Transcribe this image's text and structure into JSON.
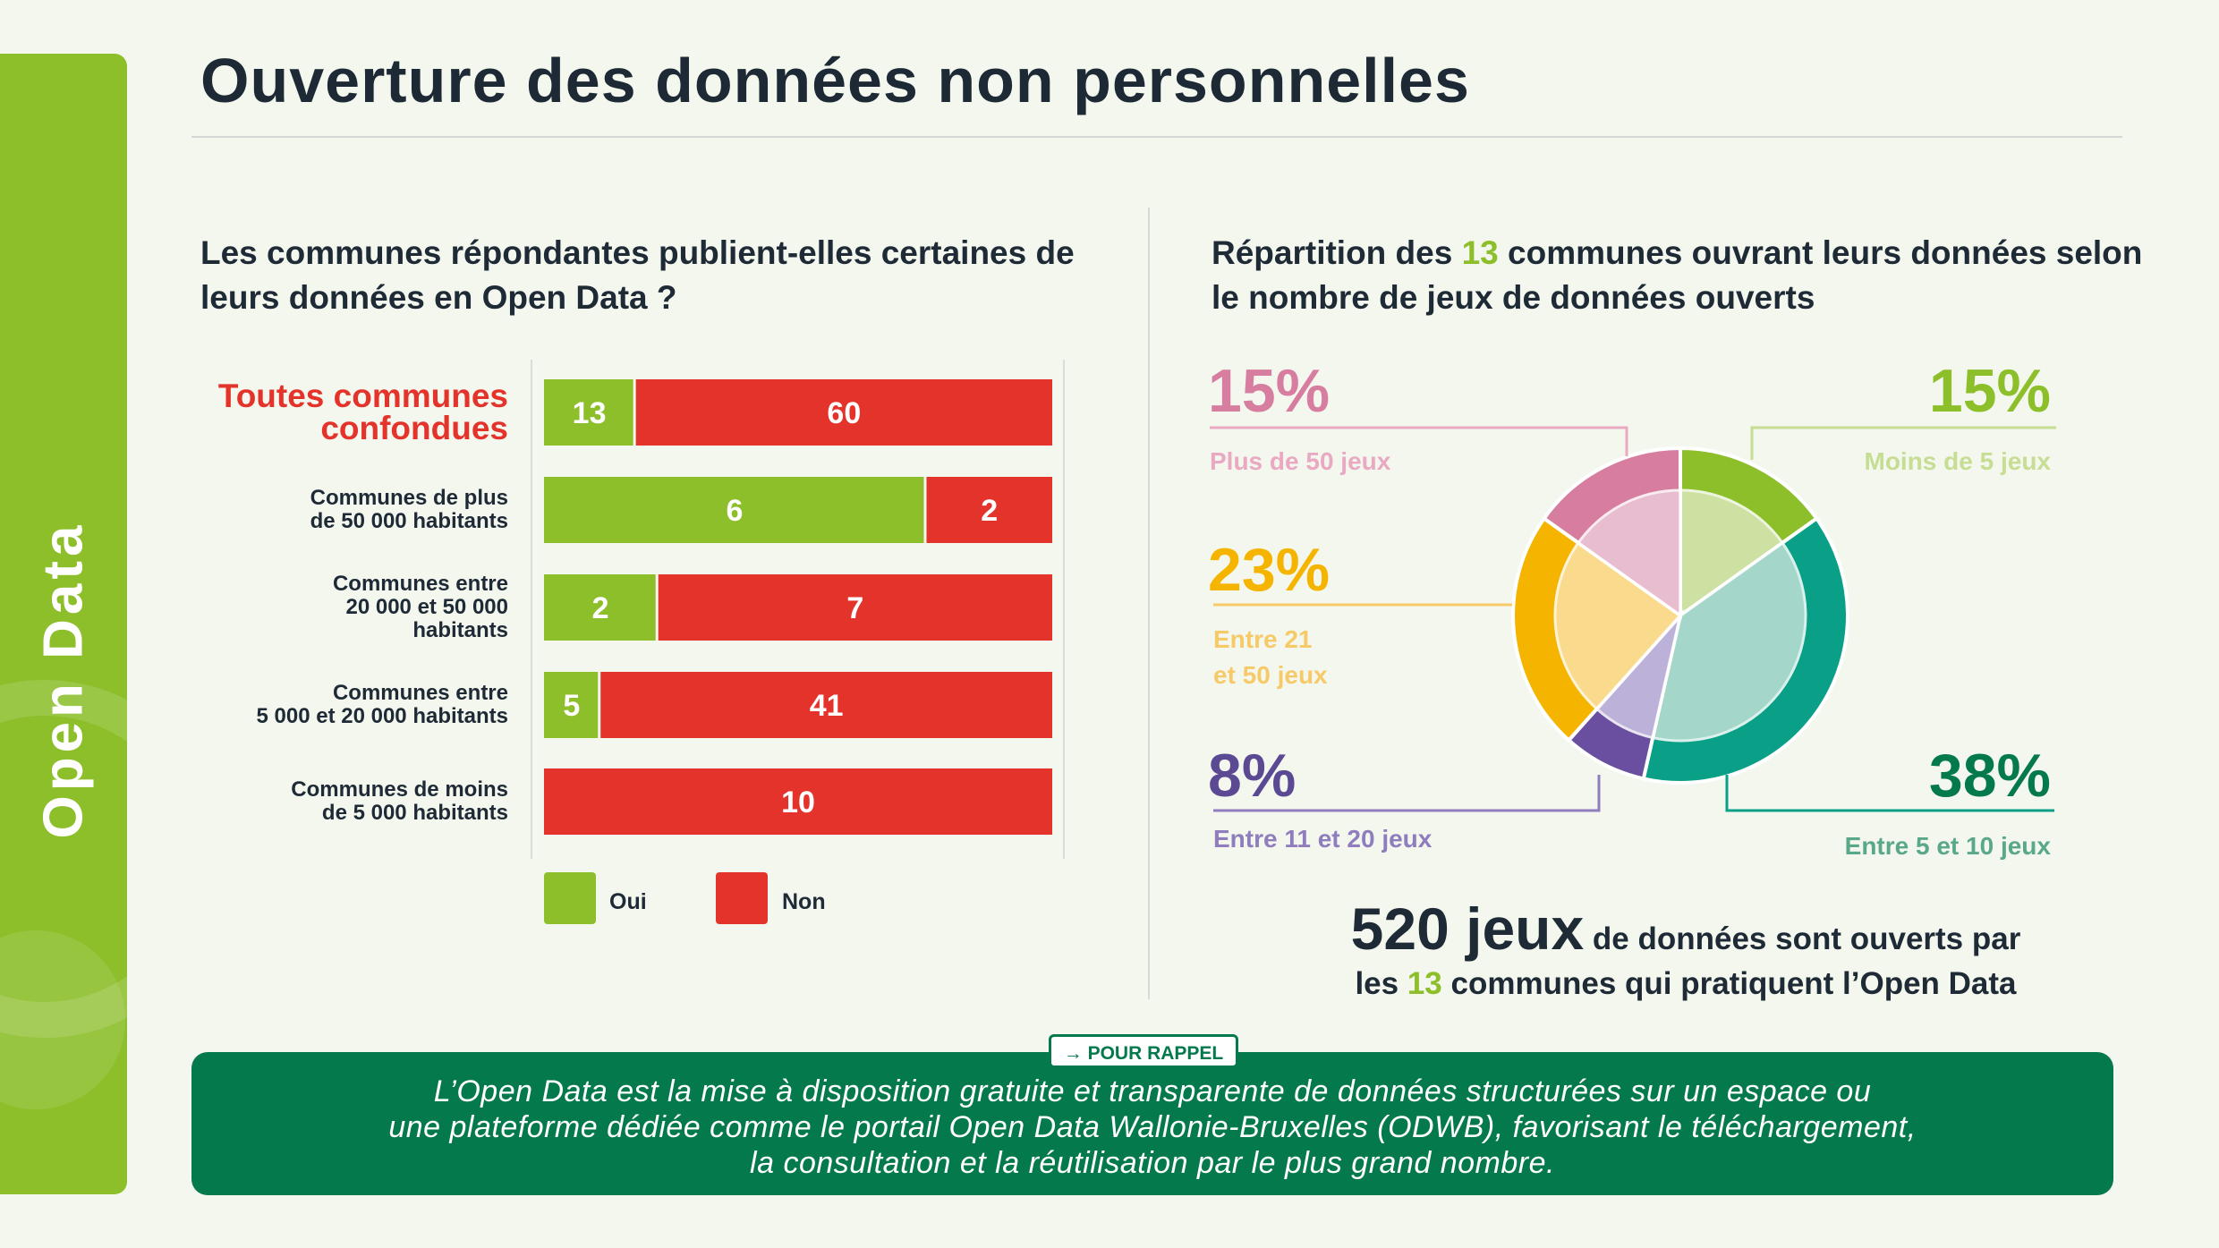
{
  "sidebar": {
    "label": "Open Data"
  },
  "header": {
    "title": "Ouverture des données non personnelles"
  },
  "colors": {
    "oui": "#8dbf2b",
    "non": "#e3332a",
    "brand_green": "#047a4c",
    "slice_moins5": "#8dbf2b",
    "slice_5_10": "#0aa087",
    "slice_11_20": "#6a4fa0",
    "slice_21_50": "#f5b400",
    "slice_plus50": "#d77ea0"
  },
  "bar_section": {
    "title": "Les communes répondantes publient-elles certaines de leurs données en Open Data ?",
    "legend": {
      "oui": "Oui",
      "non": "Non"
    }
  },
  "pie_section": {
    "title_before": "Répartition des ",
    "title_number": "13",
    "title_after": " communes ouvrant leurs données selon le nombre de jeux de données ouverts"
  },
  "summary": {
    "big": "520 jeux",
    "rest": " de données sont ouverts par",
    "line2_before": "les ",
    "line2_number": "13",
    "line2_after": " communes qui pratiquent l’Open Data"
  },
  "reminder": {
    "badge": "→ POUR RAPPEL",
    "text": "L’Open Data est la mise à disposition gratuite et transparente de données structurées sur un espace ou\nune plateforme dédiée comme le portail Open Data Wallonie-Bruxelles (ODWB), favorisant le téléchargement,\nla consultation et la réutilisation par le plus grand nombre."
  },
  "chart_data": [
    {
      "type": "bar",
      "orientation": "horizontal",
      "stacked": true,
      "normalized": true,
      "categories": [
        "Toutes communes\nconfondues",
        "Communes de plus\nde 50 000 habitants",
        "Communes entre\n20 000 et 50 000\nhabitants",
        "Communes entre\n5 000 et 20 000 habitants",
        "Communes de moins\nde 5 000 habitants"
      ],
      "highlight_category": 0,
      "series": [
        {
          "name": "Oui",
          "values": [
            13,
            6,
            2,
            5,
            0
          ]
        },
        {
          "name": "Non",
          "values": [
            60,
            2,
            7,
            41,
            10
          ]
        }
      ],
      "legend_position": "bottom-left",
      "grid": false
    },
    {
      "type": "pie",
      "slices": [
        {
          "label": "Moins de 5 jeux",
          "value": 15,
          "display": "15%"
        },
        {
          "label": "Entre 5 et 10 jeux",
          "value": 38,
          "display": "38%"
        },
        {
          "label": "Entre 11 et 20 jeux",
          "value": 8,
          "display": "8%"
        },
        {
          "label": "Entre 21\net 50 jeux",
          "value": 23,
          "display": "23%"
        },
        {
          "label": "Plus de 50 jeux",
          "value": 15,
          "display": "15%"
        }
      ]
    }
  ]
}
